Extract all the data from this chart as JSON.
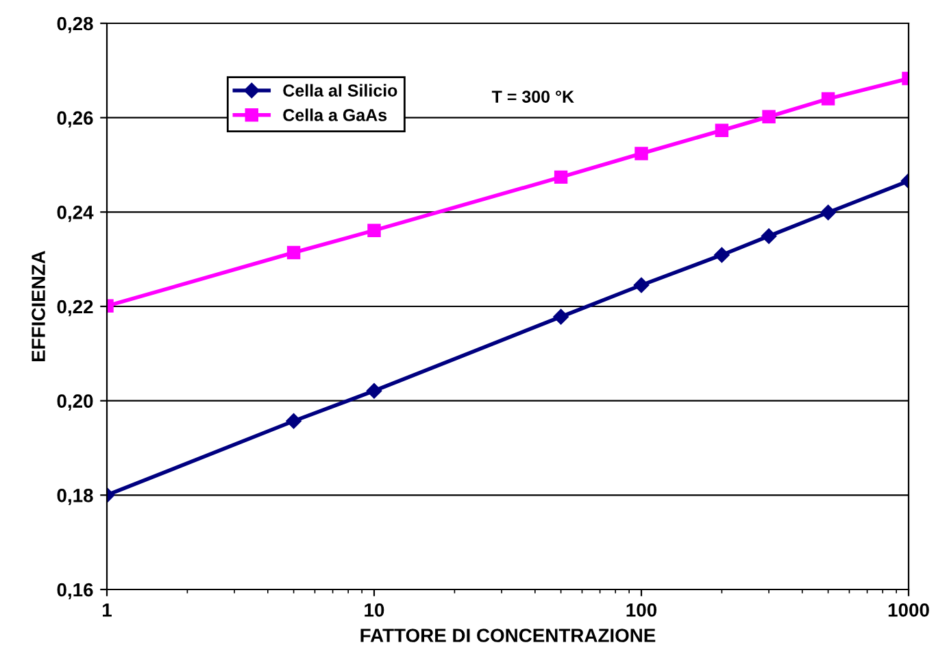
{
  "chart_data": {
    "type": "line",
    "xlabel": "FATTORE DI CONCENTRAZIONE",
    "ylabel": "EFFICIENZA",
    "log": "x",
    "x": [
      1,
      5,
      10,
      50,
      100,
      200,
      300,
      500,
      1000
    ],
    "series": [
      {
        "name": "Cella al Silicio",
        "color": "#000080",
        "marker": "diamond",
        "values": [
          0.18,
          0.1957,
          0.2021,
          0.2178,
          0.2245,
          0.2309,
          0.2349,
          0.2399,
          0.2466
        ]
      },
      {
        "name": "Cella a GaAs",
        "color": "#ff00ff",
        "marker": "square",
        "values": [
          0.2201,
          0.2314,
          0.2361,
          0.2474,
          0.2524,
          0.2573,
          0.2602,
          0.264,
          0.2683
        ]
      }
    ],
    "xlim": [
      1,
      1000
    ],
    "xticks": [
      1,
      10,
      100,
      1000
    ],
    "ylim": [
      0.16,
      0.28
    ],
    "yticks": [
      {
        "value": 0.16,
        "label": "0,16"
      },
      {
        "value": 0.18,
        "label": "0,18"
      },
      {
        "value": 0.2,
        "label": "0,20"
      },
      {
        "value": 0.22,
        "label": "0,22"
      },
      {
        "value": 0.24,
        "label": "0,24"
      },
      {
        "value": 0.26,
        "label": "0,26"
      },
      {
        "value": 0.28,
        "label": "0,28"
      }
    ],
    "grid": "y",
    "legend": "top left",
    "line_style": "solid",
    "annotations": [
      "T = 300 °K"
    ]
  }
}
